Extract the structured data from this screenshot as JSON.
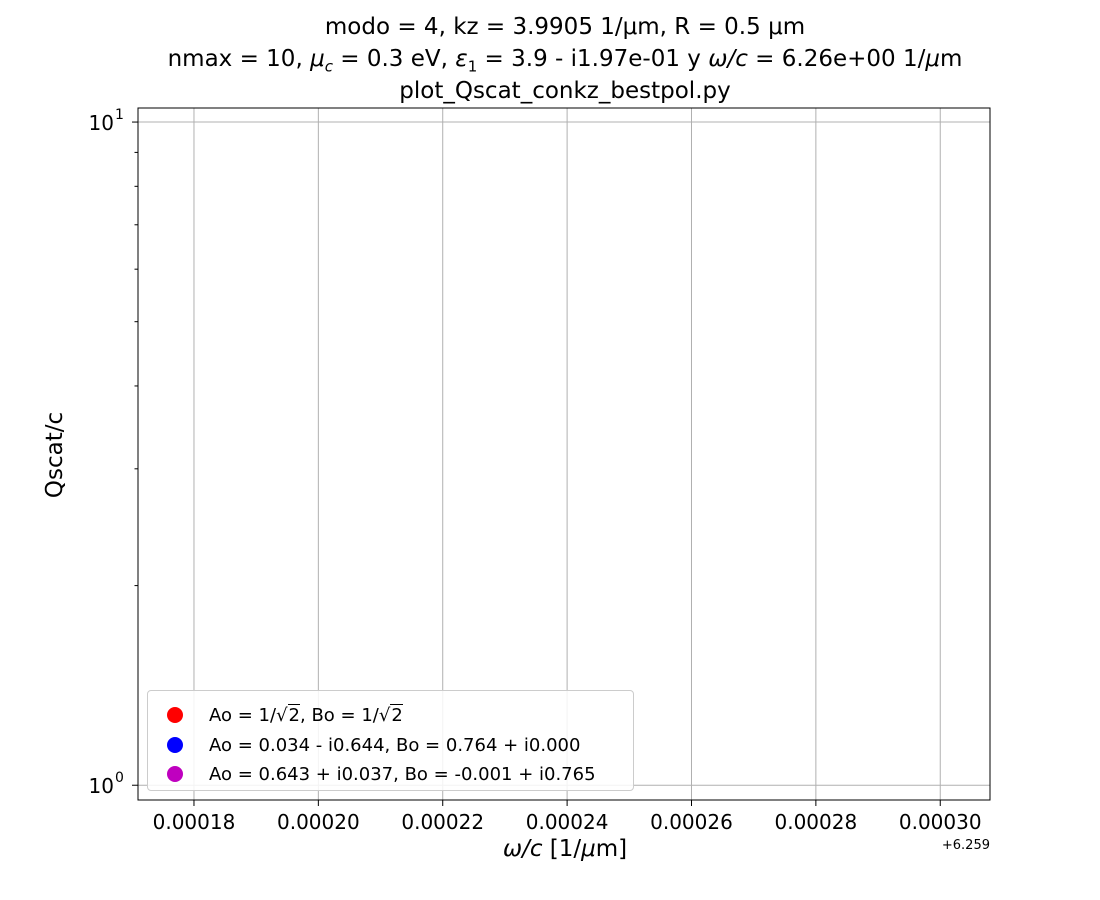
{
  "chart_data": {
    "type": "scatter",
    "title_lines": [
      "modo = 4, kz = 3.9905 1/μm, R = 0.5 μm",
      "nmax = 10, μc = 0.3 eV, ε1 = 3.9 - i1.97e-01 y ω/c = 6.26e+00 1/μm",
      "plot_Qscat_conkz_bestpol.py"
    ],
    "title_parts": {
      "l1": "modo = 4, kz = 3.9905 1/μm, R = 0.5 μm",
      "l2_a": "nmax = 10, ",
      "l2_mu": "μ",
      "l2_mu_sub": "c",
      "l2_b": " = 0.3 eV, ",
      "l2_eps": "ε",
      "l2_eps_sub": "1",
      "l2_c": " = 3.9 - i1.97e-01 y ",
      "l2_omega": "ω/c",
      "l2_d": " = 6.26e+00 1/",
      "l2_um": "μ",
      "l2_e": "m",
      "l3": "plot_Qscat_conkz_bestpol.py"
    },
    "xlabel": "ω/c [1/μm]",
    "xlabel_parts": {
      "italic": "ω/c",
      "rest_a": " [1/",
      "mu": "μ",
      "rest_b": "m]"
    },
    "ylabel": "Qscat/c",
    "x_offset_label": "+6.259",
    "x_offset": 6.259,
    "xlim": [
      0.000171,
      0.000308
    ],
    "x_ticks": [
      0.00018,
      0.0002,
      0.00022,
      0.00024,
      0.00026,
      0.00028,
      0.0003
    ],
    "x_tick_labels": [
      "0.00018",
      "0.00020",
      "0.00022",
      "0.00024",
      "0.00026",
      "0.00028",
      "0.00030"
    ],
    "y_scale": "log",
    "ylim": [
      0.95,
      10.5
    ],
    "y_major_ticks": [
      1,
      10
    ],
    "y_major_tick_labels": [
      {
        "base": "10",
        "exp": "0"
      },
      {
        "base": "10",
        "exp": "1"
      }
    ],
    "y_minor_ticks": [
      2,
      3,
      4,
      5,
      6,
      7,
      8,
      9
    ],
    "grid": true,
    "legend_position": "lower-left",
    "series": [
      {
        "name": "Ao = 1/√2, Bo = 1/√2",
        "color": "#ff0000",
        "values": []
      },
      {
        "name": "Ao = 0.034 - i0.644, Bo = 0.764 + i0.000",
        "color": "#0000ff",
        "values": []
      },
      {
        "name": "Ao = 0.643 + i0.037, Bo = -0.001 + i0.765",
        "color": "#bf00bf",
        "values": []
      }
    ],
    "legend_parts": {
      "s0_a": "Ao = 1/",
      "s0_rad": "2",
      "s0_b": ", Bo = 1/",
      "s0_rad2": "2",
      "root_symbol": "√"
    }
  }
}
